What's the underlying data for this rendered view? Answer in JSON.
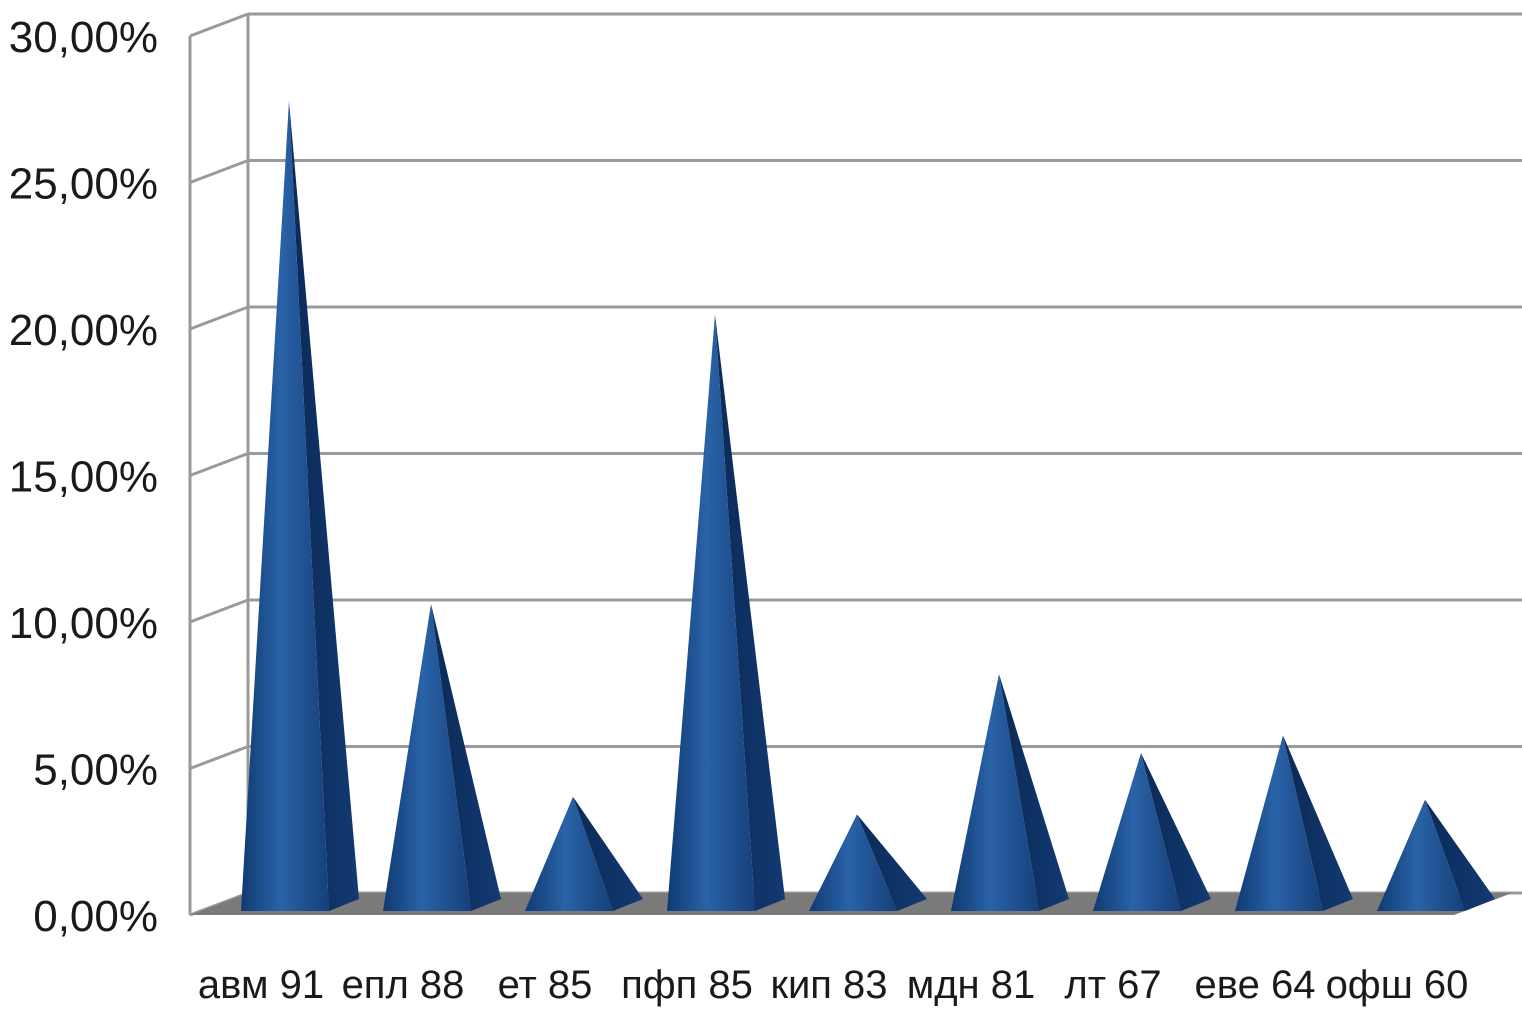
{
  "chart_data": {
    "type": "bar",
    "style": "3d-pyramid",
    "title": "",
    "xlabel": "",
    "ylabel": "",
    "ylim": [
      0,
      30
    ],
    "y_ticks": [
      "0,00%",
      "5,00%",
      "10,00%",
      "15,00%",
      "20,00%",
      "25,00%",
      "30,00%"
    ],
    "categories": [
      "авм 91",
      "епл 88",
      "ет 85",
      "пфп 85",
      "кип 83",
      "мдн 81",
      "лт 67",
      "еве 64",
      "офш 60"
    ],
    "values": [
      27.5,
      10.3,
      3.7,
      20.2,
      3.1,
      7.9,
      5.2,
      5.8,
      3.6
    ],
    "grid": true,
    "colors": {
      "pyramid_front": "#1c4f8f",
      "pyramid_side": "#0d2f5f",
      "floor": "#7a7a7a",
      "grid": "#9a9a9a"
    }
  }
}
